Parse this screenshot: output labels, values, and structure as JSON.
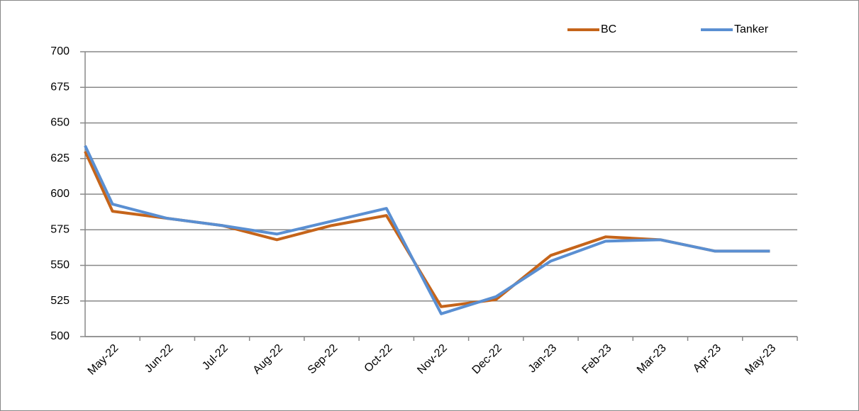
{
  "chart_data": {
    "type": "line",
    "categories": [
      null,
      "May-22",
      "Jun-22",
      "Jul-22",
      "Aug-22",
      "Sep-22",
      "Oct-22",
      "Nov-22",
      "Dec-22",
      "Jan-23",
      "Feb-23",
      "Mar-23",
      "Apr-23",
      "May-23"
    ],
    "series": [
      {
        "name": "BC",
        "color": "#c5641a",
        "values": [
          630,
          588,
          583,
          578,
          568,
          578,
          585,
          521,
          526,
          557,
          570,
          568,
          560,
          560
        ]
      },
      {
        "name": "Tanker",
        "color": "#5a8fd2",
        "values": [
          634,
          593,
          583,
          578,
          572,
          581,
          590,
          516,
          528,
          553,
          567,
          568,
          560,
          560
        ]
      }
    ],
    "ylim": [
      500,
      700
    ],
    "yticks": [
      500,
      525,
      550,
      575,
      600,
      625,
      650,
      675,
      700
    ],
    "grid": true,
    "legend": "top-right"
  }
}
